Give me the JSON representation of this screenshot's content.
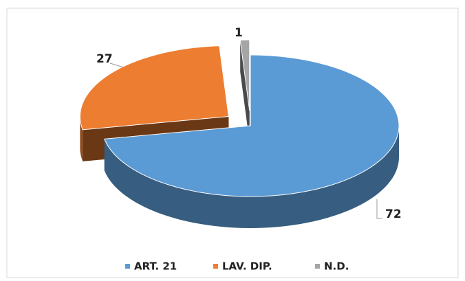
{
  "chart_data": {
    "type": "pie",
    "categories": [
      "ART. 21",
      "LAV. DIP.",
      "N.D."
    ],
    "values": [
      72,
      27,
      1
    ],
    "colors": [
      "#5b9bd5",
      "#ed7d31",
      "#a5a5a5"
    ],
    "legend": "bottom"
  }
}
